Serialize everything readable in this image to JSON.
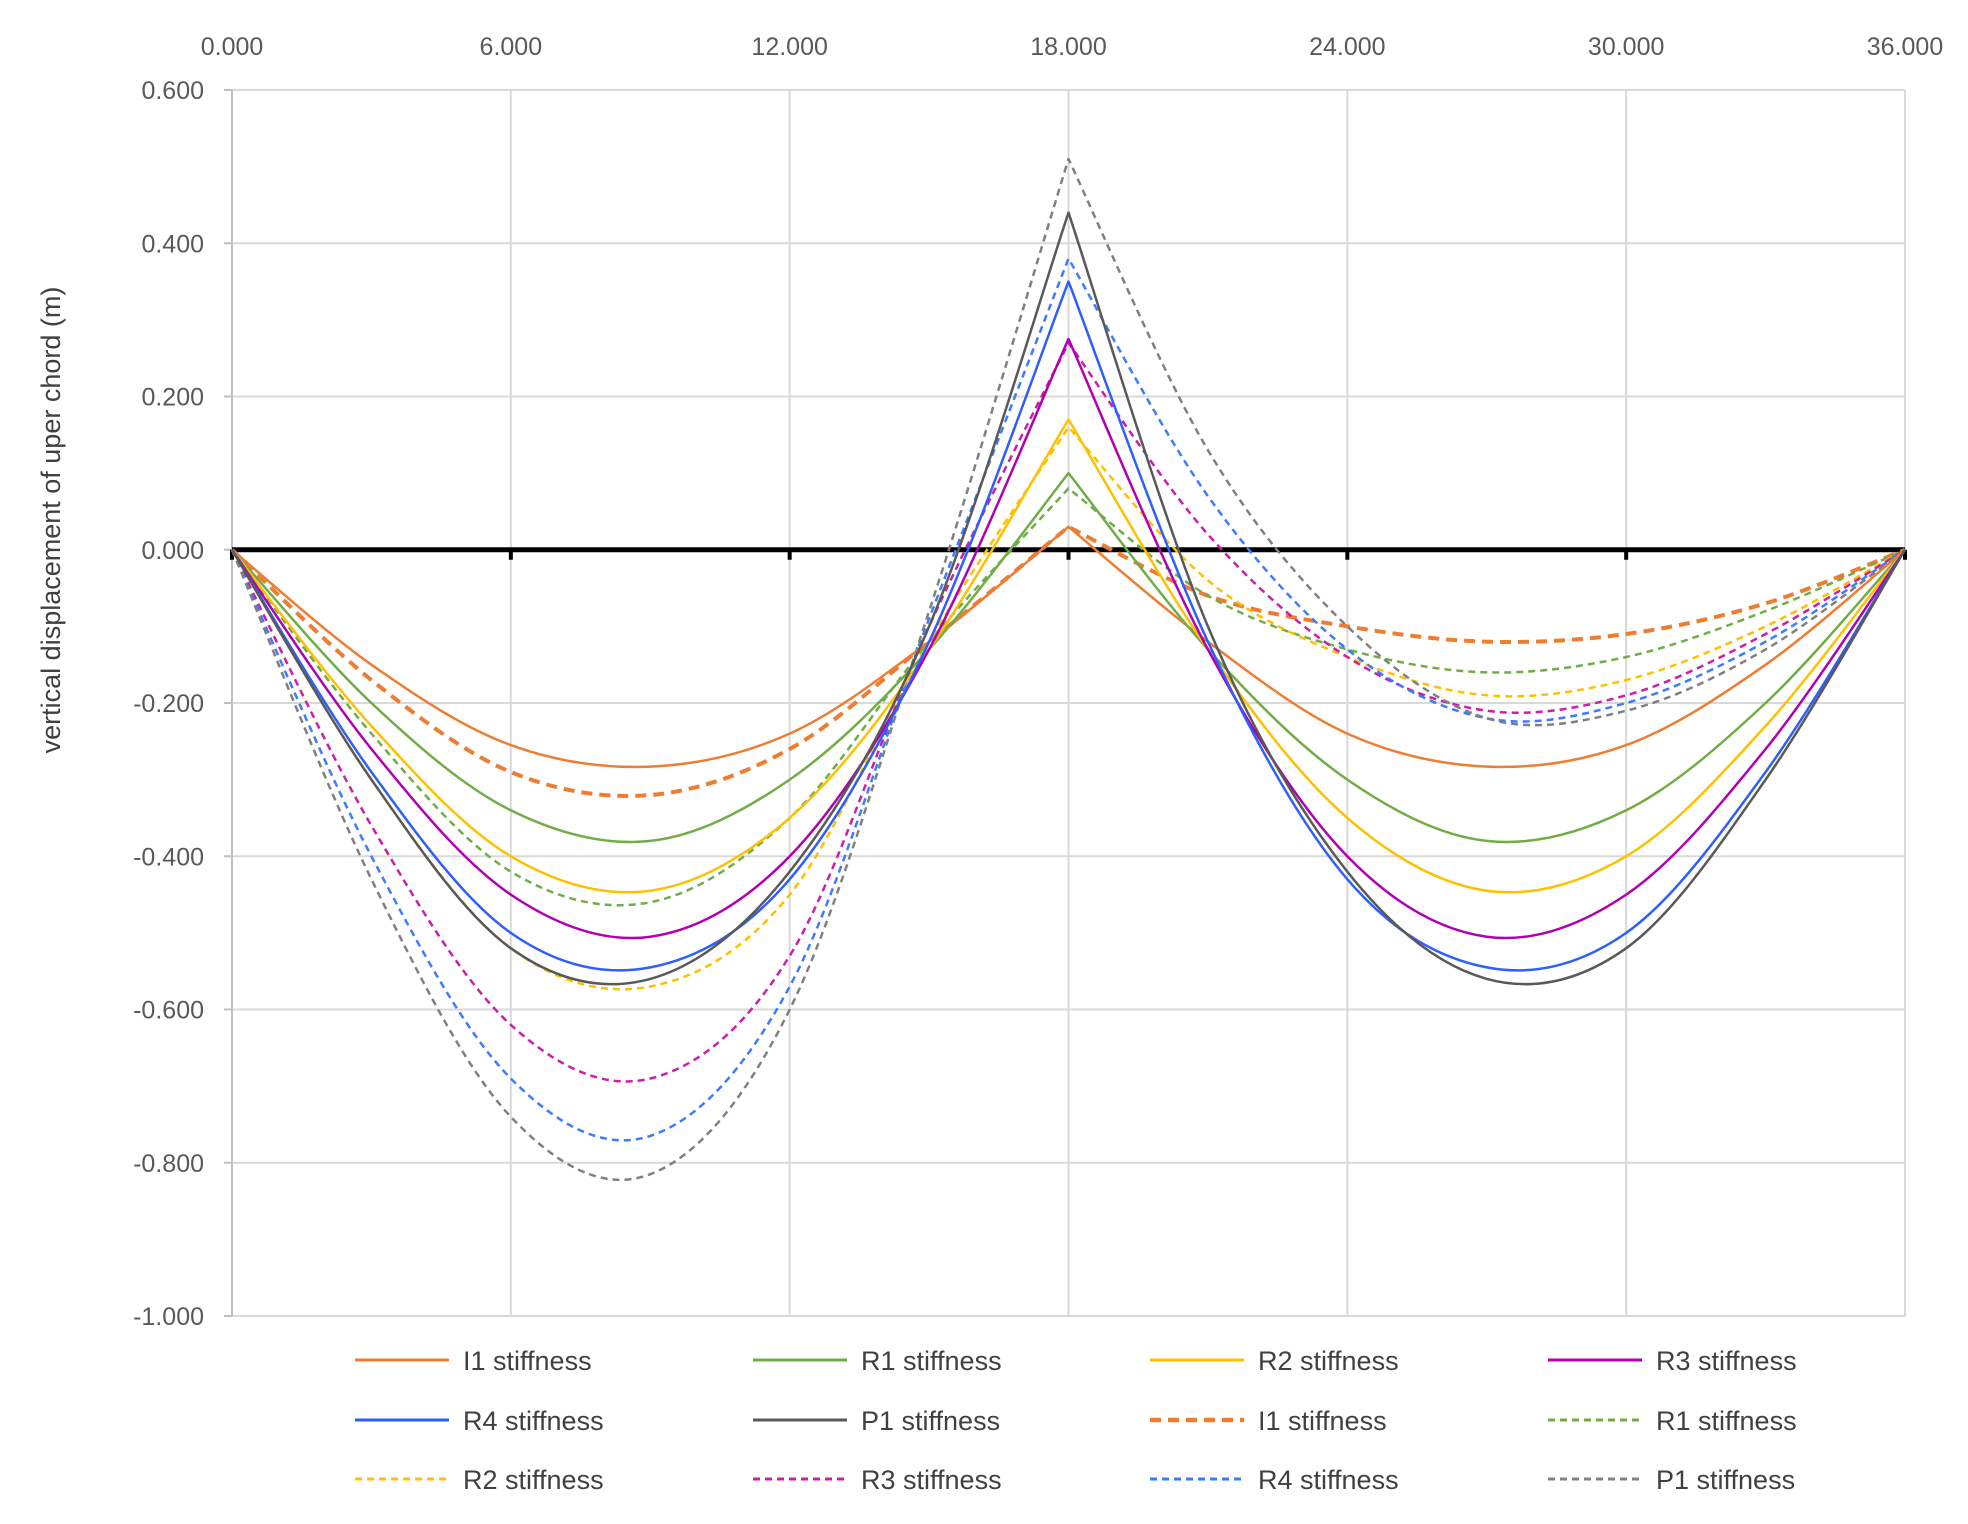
{
  "chart_data": {
    "type": "line",
    "title": "",
    "xlabel": "",
    "ylabel": "vertical displacement of uper chord (m)",
    "xlim": [
      0,
      36
    ],
    "ylim": [
      -1.0,
      0.6
    ],
    "x_ticks": [
      0,
      6,
      12,
      18,
      24,
      30,
      36
    ],
    "x_tick_labels": [
      "0.000",
      "6.000",
      "12.000",
      "18.000",
      "24.000",
      "30.000",
      "36.000"
    ],
    "x_axis_position": "top",
    "y_ticks": [
      0.6,
      0.4,
      0.2,
      0.0,
      -0.2,
      -0.4,
      -0.6,
      -0.8,
      -1.0
    ],
    "y_tick_labels": [
      "0.600",
      "0.400",
      "0.200",
      "0.000",
      "-0.200",
      "-0.400",
      "-0.600",
      "-0.800",
      "-1.000"
    ],
    "grid": true,
    "legend_position": "bottom",
    "series": [
      {
        "name": "I1 stiffness",
        "color": "#ED7D31",
        "dash": "solid",
        "width": 2.5,
        "x": [
          0,
          3,
          6,
          9,
          12,
          15,
          18,
          21,
          24,
          27,
          30,
          33,
          36
        ],
        "y": [
          0,
          -0.15,
          -0.255,
          -0.283,
          -0.24,
          -0.12,
          0.03,
          -0.12,
          -0.24,
          -0.283,
          -0.255,
          -0.15,
          0
        ]
      },
      {
        "name": "R1 stiffness",
        "color": "#70AD47",
        "dash": "solid",
        "width": 2.5,
        "x": [
          0,
          3,
          6,
          9,
          12,
          15,
          18,
          21,
          24,
          27,
          30,
          33,
          36
        ],
        "y": [
          0,
          -0.2,
          -0.34,
          -0.38,
          -0.3,
          -0.13,
          0.1,
          -0.13,
          -0.3,
          -0.38,
          -0.34,
          -0.2,
          0
        ]
      },
      {
        "name": "R2 stiffness",
        "color": "#FFC000",
        "dash": "solid",
        "width": 2.5,
        "x": [
          0,
          3,
          6,
          9,
          12,
          15,
          18,
          21,
          24,
          27,
          30,
          33,
          36
        ],
        "y": [
          0,
          -0.23,
          -0.4,
          -0.445,
          -0.35,
          -0.13,
          0.17,
          -0.13,
          -0.35,
          -0.445,
          -0.4,
          -0.23,
          0
        ]
      },
      {
        "name": "R3 stiffness",
        "color": "#B000B0",
        "dash": "solid",
        "width": 2.5,
        "x": [
          0,
          3,
          6,
          9,
          12,
          15,
          18,
          21,
          24,
          27,
          30,
          33,
          36
        ],
        "y": [
          0,
          -0.26,
          -0.45,
          -0.505,
          -0.4,
          -0.13,
          0.275,
          -0.13,
          -0.4,
          -0.505,
          -0.45,
          -0.26,
          0
        ]
      },
      {
        "name": "R4 stiffness",
        "color": "#2E5EFF",
        "dash": "solid",
        "width": 2.5,
        "x": [
          0,
          3,
          6,
          9,
          12,
          15,
          18,
          21,
          24,
          27,
          30,
          33,
          36
        ],
        "y": [
          0,
          -0.29,
          -0.5,
          -0.545,
          -0.43,
          -0.12,
          0.35,
          -0.12,
          -0.43,
          -0.545,
          -0.5,
          -0.29,
          0
        ]
      },
      {
        "name": "P1 stiffness",
        "color": "#595959",
        "dash": "solid",
        "width": 2.5,
        "x": [
          0,
          3,
          6,
          9,
          12,
          15,
          18,
          21,
          24,
          27,
          30,
          33,
          36
        ],
        "y": [
          0,
          -0.3,
          -0.52,
          -0.56,
          -0.42,
          -0.1,
          0.44,
          -0.1,
          -0.42,
          -0.56,
          -0.52,
          -0.3,
          0
        ]
      },
      {
        "name": "I1 stiffness",
        "color": "#ED7D31",
        "dash": "dashed",
        "width": 4,
        "x": [
          0,
          3,
          6,
          9,
          12,
          15,
          18,
          21,
          24,
          27,
          30,
          33,
          36
        ],
        "y": [
          0,
          -0.17,
          -0.29,
          -0.32,
          -0.26,
          -0.12,
          0.03,
          -0.06,
          -0.1,
          -0.12,
          -0.11,
          -0.07,
          0
        ]
      },
      {
        "name": "R1 stiffness",
        "color": "#70AD47",
        "dash": "dashed",
        "width": 2.5,
        "x": [
          0,
          3,
          6,
          9,
          12,
          15,
          18,
          21,
          24,
          27,
          30,
          33,
          36
        ],
        "y": [
          0,
          -0.24,
          -0.42,
          -0.46,
          -0.35,
          -0.12,
          0.08,
          -0.06,
          -0.13,
          -0.16,
          -0.14,
          -0.08,
          0
        ]
      },
      {
        "name": "R2 stiffness",
        "color": "#FFC000",
        "dash": "dashed",
        "width": 2.5,
        "x": [
          0,
          3,
          6,
          9,
          12,
          15,
          18,
          21,
          24,
          27,
          30,
          33,
          36
        ],
        "y": [
          0,
          -0.3,
          -0.52,
          -0.57,
          -0.45,
          -0.12,
          0.16,
          -0.04,
          -0.14,
          -0.19,
          -0.17,
          -0.1,
          0
        ]
      },
      {
        "name": "R3 stiffness",
        "color": "#CC1FA8",
        "dash": "dashed",
        "width": 2.5,
        "x": [
          0,
          3,
          6,
          9,
          12,
          15,
          18,
          21,
          24,
          27,
          30,
          33,
          36
        ],
        "y": [
          0,
          -0.36,
          -0.62,
          -0.69,
          -0.53,
          -0.1,
          0.27,
          0.02,
          -0.14,
          -0.21,
          -0.19,
          -0.11,
          0
        ]
      },
      {
        "name": "R4 stiffness",
        "color": "#3D7BFF",
        "dash": "dashed",
        "width": 2.5,
        "x": [
          0,
          3,
          6,
          9,
          12,
          15,
          18,
          21,
          24,
          27,
          30,
          33,
          36
        ],
        "y": [
          0,
          -0.4,
          -0.69,
          -0.765,
          -0.57,
          -0.09,
          0.38,
          0.07,
          -0.13,
          -0.22,
          -0.2,
          -0.12,
          0
        ]
      },
      {
        "name": "P1 stiffness",
        "color": "#808080",
        "dash": "dashed",
        "width": 2.5,
        "x": [
          0,
          3,
          6,
          9,
          12,
          15,
          18,
          21,
          24,
          27,
          30,
          33,
          36
        ],
        "y": [
          0,
          -0.43,
          -0.74,
          -0.815,
          -0.6,
          -0.08,
          0.51,
          0.13,
          -0.1,
          -0.22,
          -0.21,
          -0.13,
          0
        ]
      }
    ]
  }
}
